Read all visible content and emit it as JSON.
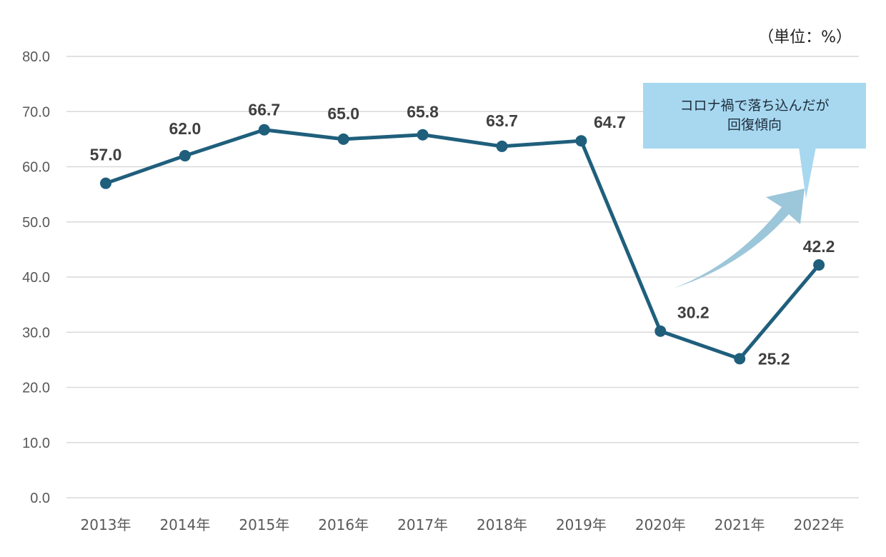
{
  "unit_label": "（単位：%）",
  "callout": {
    "line1": "コロナ禍で落ち込んだが",
    "line2": "回復傾向"
  },
  "colors": {
    "line": "#1f5f7c",
    "grid": "#d9d9d9",
    "axis_text": "#595959",
    "data_label": "#404040",
    "callout_bg": "#a7d8f0",
    "arrow": "#9cc6da"
  },
  "chart_data": {
    "type": "line",
    "categories": [
      "2013年",
      "2014年",
      "2015年",
      "2016年",
      "2017年",
      "2018年",
      "2019年",
      "2020年",
      "2021年",
      "2022年"
    ],
    "values": [
      57.0,
      62.0,
      66.7,
      65.0,
      65.8,
      63.7,
      64.7,
      30.2,
      25.2,
      42.2
    ],
    "value_labels": [
      "57.0",
      "62.0",
      "66.7",
      "65.0",
      "65.8",
      "63.7",
      "64.7",
      "30.2",
      "25.2",
      "42.2"
    ],
    "y_ticks": [
      "0.0",
      "10.0",
      "20.0",
      "30.0",
      "40.0",
      "50.0",
      "60.0",
      "70.0",
      "80.0"
    ],
    "ylim": [
      0,
      80
    ],
    "grid": true,
    "legend": "none",
    "annotation": "コロナ禍で落ち込んだが回復傾向",
    "title": "",
    "xlabel": "",
    "ylabel": ""
  }
}
